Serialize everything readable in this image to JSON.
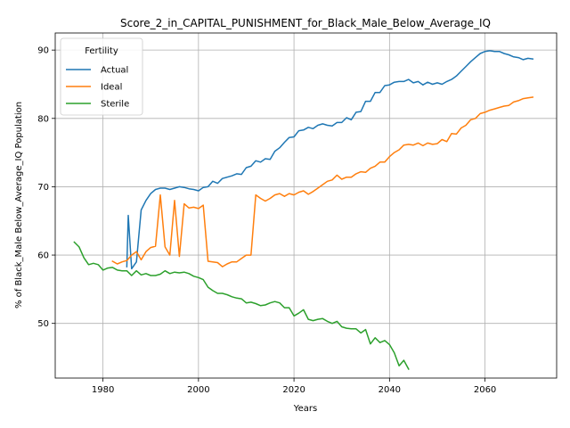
{
  "chart_data": {
    "type": "line",
    "title": "Score_2_in_CAPITAL_PUNISHMENT_for_Black_Male_Below_Average_IQ",
    "xlabel": "Years",
    "ylabel": "% of Black_Male Below_Average_IQ Population",
    "xlim": [
      1970,
      2075
    ],
    "ylim": [
      42,
      92.5
    ],
    "xticks": [
      1980,
      2000,
      2020,
      2040,
      2060
    ],
    "yticks": [
      50,
      60,
      70,
      80,
      90
    ],
    "grid": true,
    "legend": {
      "title": "Fertility",
      "placement": "top-left"
    },
    "series": [
      {
        "name": "Actual",
        "color": "#1f77b4",
        "points": [
          [
            1985,
            58.3
          ],
          [
            1985.3,
            65.8
          ],
          [
            1986,
            58.0
          ],
          [
            1987,
            59.0
          ],
          [
            1988,
            66.6
          ],
          [
            1989,
            68.0
          ],
          [
            1990,
            69.0
          ],
          [
            1991,
            69.6
          ],
          [
            1992,
            69.8
          ],
          [
            1993,
            69.8
          ],
          [
            1994,
            69.6
          ],
          [
            1995,
            69.8
          ],
          [
            1996,
            70.0
          ],
          [
            1997,
            69.9
          ],
          [
            1998,
            69.7
          ],
          [
            1999,
            69.6
          ],
          [
            2000,
            69.4
          ],
          [
            2001,
            69.9
          ],
          [
            2002,
            70.0
          ],
          [
            2003,
            70.8
          ],
          [
            2004,
            70.5
          ],
          [
            2005,
            71.2
          ],
          [
            2006,
            71.4
          ],
          [
            2007,
            71.6
          ],
          [
            2008,
            71.9
          ],
          [
            2009,
            71.8
          ],
          [
            2010,
            72.8
          ],
          [
            2011,
            73.0
          ],
          [
            2012,
            73.8
          ],
          [
            2013,
            73.6
          ],
          [
            2014,
            74.1
          ],
          [
            2015,
            74.0
          ],
          [
            2016,
            75.2
          ],
          [
            2017,
            75.7
          ],
          [
            2018,
            76.5
          ],
          [
            2019,
            77.2
          ],
          [
            2020,
            77.3
          ],
          [
            2021,
            78.2
          ],
          [
            2022,
            78.3
          ],
          [
            2023,
            78.7
          ],
          [
            2024,
            78.5
          ],
          [
            2025,
            79.0
          ],
          [
            2026,
            79.2
          ],
          [
            2027,
            79.0
          ],
          [
            2028,
            78.9
          ],
          [
            2029,
            79.4
          ],
          [
            2030,
            79.4
          ],
          [
            2031,
            80.1
          ],
          [
            2032,
            79.8
          ],
          [
            2033,
            80.9
          ],
          [
            2034,
            81.0
          ],
          [
            2035,
            82.5
          ],
          [
            2036,
            82.5
          ],
          [
            2037,
            83.8
          ],
          [
            2038,
            83.8
          ],
          [
            2039,
            84.8
          ],
          [
            2040,
            84.9
          ],
          [
            2041,
            85.3
          ],
          [
            2042,
            85.4
          ],
          [
            2043,
            85.4
          ],
          [
            2044,
            85.7
          ],
          [
            2045,
            85.2
          ],
          [
            2046,
            85.4
          ],
          [
            2047,
            84.9
          ],
          [
            2048,
            85.3
          ],
          [
            2049,
            85.0
          ],
          [
            2050,
            85.2
          ],
          [
            2051,
            85.0
          ],
          [
            2052,
            85.4
          ],
          [
            2053,
            85.7
          ],
          [
            2054,
            86.2
          ],
          [
            2055,
            86.9
          ],
          [
            2056,
            87.6
          ],
          [
            2057,
            88.3
          ],
          [
            2058,
            88.9
          ],
          [
            2059,
            89.5
          ],
          [
            2060,
            89.8
          ],
          [
            2061,
            89.9
          ],
          [
            2062,
            89.8
          ],
          [
            2063,
            89.8
          ],
          [
            2064,
            89.5
          ],
          [
            2065,
            89.3
          ],
          [
            2066,
            89.0
          ],
          [
            2067,
            88.9
          ],
          [
            2068,
            88.6
          ],
          [
            2069,
            88.8
          ],
          [
            2070,
            88.7
          ]
        ]
      },
      {
        "name": "Ideal",
        "color": "#ff7f0e",
        "points": [
          [
            1982,
            59.1
          ],
          [
            1983,
            58.7
          ],
          [
            1984,
            59.0
          ],
          [
            1985,
            59.2
          ],
          [
            1986,
            60.0
          ],
          [
            1987,
            60.5
          ],
          [
            1988,
            59.3
          ],
          [
            1989,
            60.5
          ],
          [
            1990,
            61.1
          ],
          [
            1991,
            61.3
          ],
          [
            1992,
            68.8
          ],
          [
            1993,
            61.2
          ],
          [
            1994,
            60.0
          ],
          [
            1995,
            68.0
          ],
          [
            1996,
            59.8
          ],
          [
            1997,
            67.5
          ],
          [
            1998,
            66.9
          ],
          [
            1999,
            67.0
          ],
          [
            2000,
            66.8
          ],
          [
            2001,
            67.3
          ],
          [
            2002,
            59.1
          ],
          [
            2003,
            59.0
          ],
          [
            2004,
            58.9
          ],
          [
            2005,
            58.3
          ],
          [
            2006,
            58.7
          ],
          [
            2007,
            59.0
          ],
          [
            2008,
            59.0
          ],
          [
            2009,
            59.5
          ],
          [
            2010,
            60.0
          ],
          [
            2011,
            60.0
          ],
          [
            2012,
            68.8
          ],
          [
            2013,
            68.3
          ],
          [
            2014,
            67.9
          ],
          [
            2015,
            68.3
          ],
          [
            2016,
            68.8
          ],
          [
            2017,
            69.0
          ],
          [
            2018,
            68.6
          ],
          [
            2019,
            69.0
          ],
          [
            2020,
            68.8
          ],
          [
            2021,
            69.2
          ],
          [
            2022,
            69.4
          ],
          [
            2023,
            68.9
          ],
          [
            2024,
            69.3
          ],
          [
            2025,
            69.8
          ],
          [
            2026,
            70.3
          ],
          [
            2027,
            70.8
          ],
          [
            2028,
            71.0
          ],
          [
            2029,
            71.7
          ],
          [
            2030,
            71.1
          ],
          [
            2031,
            71.4
          ],
          [
            2032,
            71.4
          ],
          [
            2033,
            71.9
          ],
          [
            2034,
            72.2
          ],
          [
            2035,
            72.1
          ],
          [
            2036,
            72.7
          ],
          [
            2037,
            73.0
          ],
          [
            2038,
            73.6
          ],
          [
            2039,
            73.6
          ],
          [
            2040,
            74.4
          ],
          [
            2041,
            75.0
          ],
          [
            2042,
            75.4
          ],
          [
            2043,
            76.1
          ],
          [
            2044,
            76.2
          ],
          [
            2045,
            76.1
          ],
          [
            2046,
            76.4
          ],
          [
            2047,
            76.0
          ],
          [
            2048,
            76.4
          ],
          [
            2049,
            76.2
          ],
          [
            2050,
            76.3
          ],
          [
            2051,
            76.9
          ],
          [
            2052,
            76.6
          ],
          [
            2053,
            77.8
          ],
          [
            2054,
            77.7
          ],
          [
            2055,
            78.6
          ],
          [
            2056,
            79.0
          ],
          [
            2057,
            79.8
          ],
          [
            2058,
            80.0
          ],
          [
            2059,
            80.7
          ],
          [
            2060,
            80.9
          ],
          [
            2061,
            81.2
          ],
          [
            2062,
            81.4
          ],
          [
            2063,
            81.6
          ],
          [
            2064,
            81.8
          ],
          [
            2065,
            81.9
          ],
          [
            2066,
            82.4
          ],
          [
            2067,
            82.6
          ],
          [
            2068,
            82.9
          ],
          [
            2069,
            83.0
          ],
          [
            2070,
            83.1
          ]
        ]
      },
      {
        "name": "Sterile",
        "color": "#2ca02c",
        "points": [
          [
            1974,
            61.9
          ],
          [
            1975,
            61.2
          ],
          [
            1976,
            59.6
          ],
          [
            1977,
            58.6
          ],
          [
            1978,
            58.8
          ],
          [
            1979,
            58.6
          ],
          [
            1980,
            57.8
          ],
          [
            1981,
            58.1
          ],
          [
            1982,
            58.2
          ],
          [
            1983,
            57.8
          ],
          [
            1984,
            57.7
          ],
          [
            1985,
            57.7
          ],
          [
            1986,
            57.0
          ],
          [
            1987,
            57.7
          ],
          [
            1988,
            57.1
          ],
          [
            1989,
            57.3
          ],
          [
            1990,
            57.0
          ],
          [
            1991,
            57.0
          ],
          [
            1992,
            57.2
          ],
          [
            1993,
            57.7
          ],
          [
            1994,
            57.3
          ],
          [
            1995,
            57.5
          ],
          [
            1996,
            57.4
          ],
          [
            1997,
            57.5
          ],
          [
            1998,
            57.3
          ],
          [
            1999,
            56.9
          ],
          [
            2000,
            56.7
          ],
          [
            2001,
            56.4
          ],
          [
            2002,
            55.3
          ],
          [
            2003,
            54.8
          ],
          [
            2004,
            54.4
          ],
          [
            2005,
            54.4
          ],
          [
            2006,
            54.2
          ],
          [
            2007,
            53.9
          ],
          [
            2008,
            53.7
          ],
          [
            2009,
            53.6
          ],
          [
            2010,
            53.0
          ],
          [
            2011,
            53.1
          ],
          [
            2012,
            52.9
          ],
          [
            2013,
            52.6
          ],
          [
            2014,
            52.7
          ],
          [
            2015,
            53.0
          ],
          [
            2016,
            53.2
          ],
          [
            2017,
            53.0
          ],
          [
            2018,
            52.3
          ],
          [
            2019,
            52.3
          ],
          [
            2020,
            51.1
          ],
          [
            2021,
            51.5
          ],
          [
            2022,
            52.0
          ],
          [
            2023,
            50.6
          ],
          [
            2024,
            50.4
          ],
          [
            2025,
            50.6
          ],
          [
            2026,
            50.7
          ],
          [
            2027,
            50.3
          ],
          [
            2028,
            50.0
          ],
          [
            2029,
            50.3
          ],
          [
            2030,
            49.5
          ],
          [
            2031,
            49.3
          ],
          [
            2032,
            49.2
          ],
          [
            2033,
            49.2
          ],
          [
            2034,
            48.6
          ],
          [
            2035,
            49.1
          ],
          [
            2036,
            47.0
          ],
          [
            2037,
            47.9
          ],
          [
            2038,
            47.2
          ],
          [
            2039,
            47.5
          ],
          [
            2040,
            46.9
          ],
          [
            2041,
            45.7
          ],
          [
            2042,
            43.8
          ],
          [
            2043,
            44.6
          ],
          [
            2044,
            43.3
          ]
        ]
      }
    ]
  }
}
